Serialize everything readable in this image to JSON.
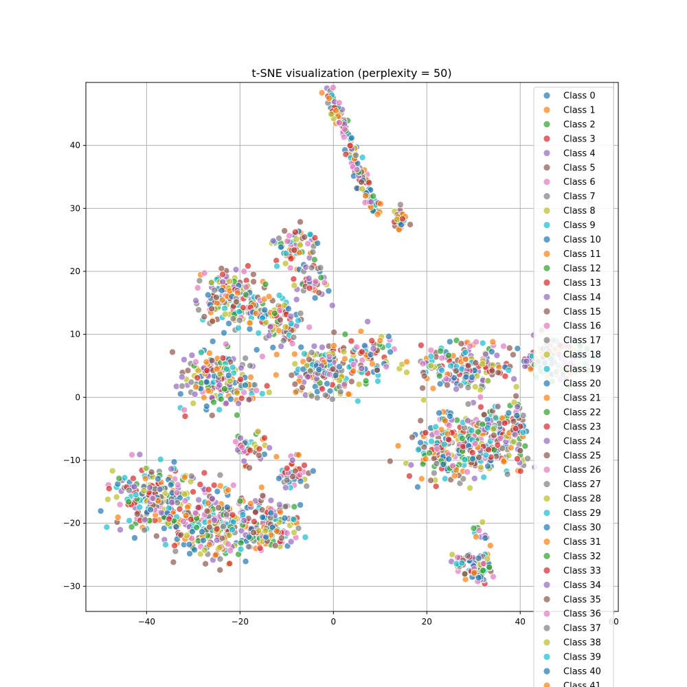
{
  "chart_data": {
    "type": "scatter",
    "title": "t-SNE visualization (perplexity = 50)",
    "xlabel": "",
    "ylabel": "",
    "xlim": [
      -53,
      61
    ],
    "ylim": [
      -34,
      50
    ],
    "xticks": [
      -40,
      -20,
      0,
      20,
      40,
      60
    ],
    "yticks": [
      -30,
      -20,
      -10,
      0,
      10,
      20,
      30,
      40
    ],
    "grid": true,
    "legend_position": "upper-right",
    "series_colors": [
      "#1f77b4",
      "#ff7f0e",
      "#2ca02c",
      "#d62728",
      "#9467bd",
      "#8c564b",
      "#e377c2",
      "#7f7f7f",
      "#bcbd22",
      "#17becf"
    ],
    "point_alpha": 0.7,
    "legend_names": [
      "Class 0",
      "Class 1",
      "Class 2",
      "Class 3",
      "Class 4",
      "Class 5",
      "Class 6",
      "Class 7",
      "Class 8",
      "Class 9",
      "Class 10",
      "Class 11",
      "Class 12",
      "Class 13",
      "Class 14",
      "Class 15",
      "Class 16",
      "Class 17",
      "Class 18",
      "Class 19",
      "Class 20",
      "Class 21",
      "Class 22",
      "Class 23",
      "Class 24",
      "Class 25",
      "Class 26",
      "Class 27",
      "Class 28",
      "Class 29",
      "Class 30",
      "Class 31",
      "Class 32",
      "Class 33",
      "Class 34",
      "Class 35",
      "Class 36",
      "Class 37",
      "Class 38",
      "Class 39",
      "Class 40",
      "Class 41"
    ],
    "clusters": [
      {
        "center": [
          4,
          39
        ],
        "spread": [
          2.2,
          2.2
        ],
        "count": 140,
        "direction": [
          1,
          -1.9
        ],
        "length": 11
      },
      {
        "center": [
          14,
          28
        ],
        "spread": [
          1.5,
          1.5
        ],
        "count": 25
      },
      {
        "center": [
          -8,
          24
        ],
        "spread": [
          4,
          2.5
        ],
        "count": 60
      },
      {
        "center": [
          -22,
          16
        ],
        "spread": [
          5,
          3
        ],
        "count": 150
      },
      {
        "center": [
          -12,
          12
        ],
        "spread": [
          4,
          3
        ],
        "count": 90
      },
      {
        "center": [
          -4,
          18
        ],
        "spread": [
          3,
          2
        ],
        "count": 40
      },
      {
        "center": [
          -24,
          3
        ],
        "spread": [
          6,
          3.5
        ],
        "count": 180
      },
      {
        "center": [
          -2,
          4
        ],
        "spread": [
          5,
          3
        ],
        "count": 150
      },
      {
        "center": [
          8,
          6
        ],
        "spread": [
          5,
          3
        ],
        "count": 70
      },
      {
        "center": [
          -18,
          -8
        ],
        "spread": [
          3,
          2
        ],
        "count": 40
      },
      {
        "center": [
          -8,
          -12
        ],
        "spread": [
          3,
          2
        ],
        "count": 40
      },
      {
        "center": [
          -38,
          -16
        ],
        "spread": [
          6,
          4
        ],
        "count": 220
      },
      {
        "center": [
          -26,
          -20
        ],
        "spread": [
          6,
          4
        ],
        "count": 250
      },
      {
        "center": [
          -14,
          -20
        ],
        "spread": [
          5,
          3
        ],
        "count": 130
      },
      {
        "center": [
          28,
          5
        ],
        "spread": [
          7,
          3
        ],
        "count": 160
      },
      {
        "center": [
          25,
          -8
        ],
        "spread": [
          6,
          4
        ],
        "count": 200
      },
      {
        "center": [
          36,
          -6
        ],
        "spread": [
          5,
          4
        ],
        "count": 160
      },
      {
        "center": [
          47,
          6
        ],
        "spread": [
          5,
          2.5
        ],
        "count": 120
      },
      {
        "center": [
          31,
          -27
        ],
        "spread": [
          2.5,
          2
        ],
        "count": 80
      },
      {
        "center": [
          27,
          -26
        ],
        "spread": [
          1.5,
          1
        ],
        "count": 12
      },
      {
        "center": [
          32,
          -22
        ],
        "spread": [
          1.5,
          1.5
        ],
        "count": 12
      }
    ]
  }
}
